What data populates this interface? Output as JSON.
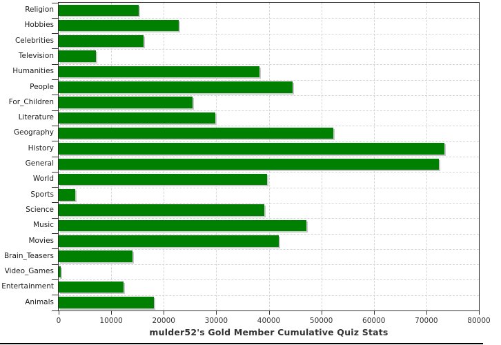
{
  "chart_data": {
    "type": "bar",
    "orientation": "horizontal",
    "title": "mulder52's Gold Member Cumulative Quiz Stats",
    "categories": [
      "Religion",
      "Hobbies",
      "Celebrities",
      "Television",
      "Humanities",
      "People",
      "For_Children",
      "Literature",
      "Geography",
      "History",
      "General",
      "World",
      "Sports",
      "Science",
      "Music",
      "Movies",
      "Brain_Teasers",
      "Video_Games",
      "Entertainment",
      "Animals"
    ],
    "values": [
      15300,
      22900,
      16100,
      7100,
      38200,
      44500,
      25500,
      29800,
      52300,
      73400,
      72400,
      39700,
      3200,
      39200,
      47100,
      41900,
      14100,
      400,
      12300,
      18100
    ],
    "xlabel": "",
    "ylabel": "",
    "xlim": [
      0,
      80000
    ],
    "xticks": [
      0,
      10000,
      20000,
      30000,
      40000,
      50000,
      60000,
      70000,
      80000
    ],
    "xtick_labels": [
      "0",
      "10000",
      "20000",
      "30000",
      "40000",
      "50000",
      "60000",
      "70000",
      "80000"
    ],
    "grid": "dashed, both directions",
    "legend": "none",
    "colors": {
      "bar": "#008000",
      "bar_shadow": "#c9c9c9",
      "grid": "#d2d6d8",
      "axis": "#2e2e2e",
      "tick_label": "#333333",
      "category_label": "#1a1a1a",
      "title": "#333333",
      "background": "#ffffff",
      "page_rule": "#000000"
    }
  }
}
